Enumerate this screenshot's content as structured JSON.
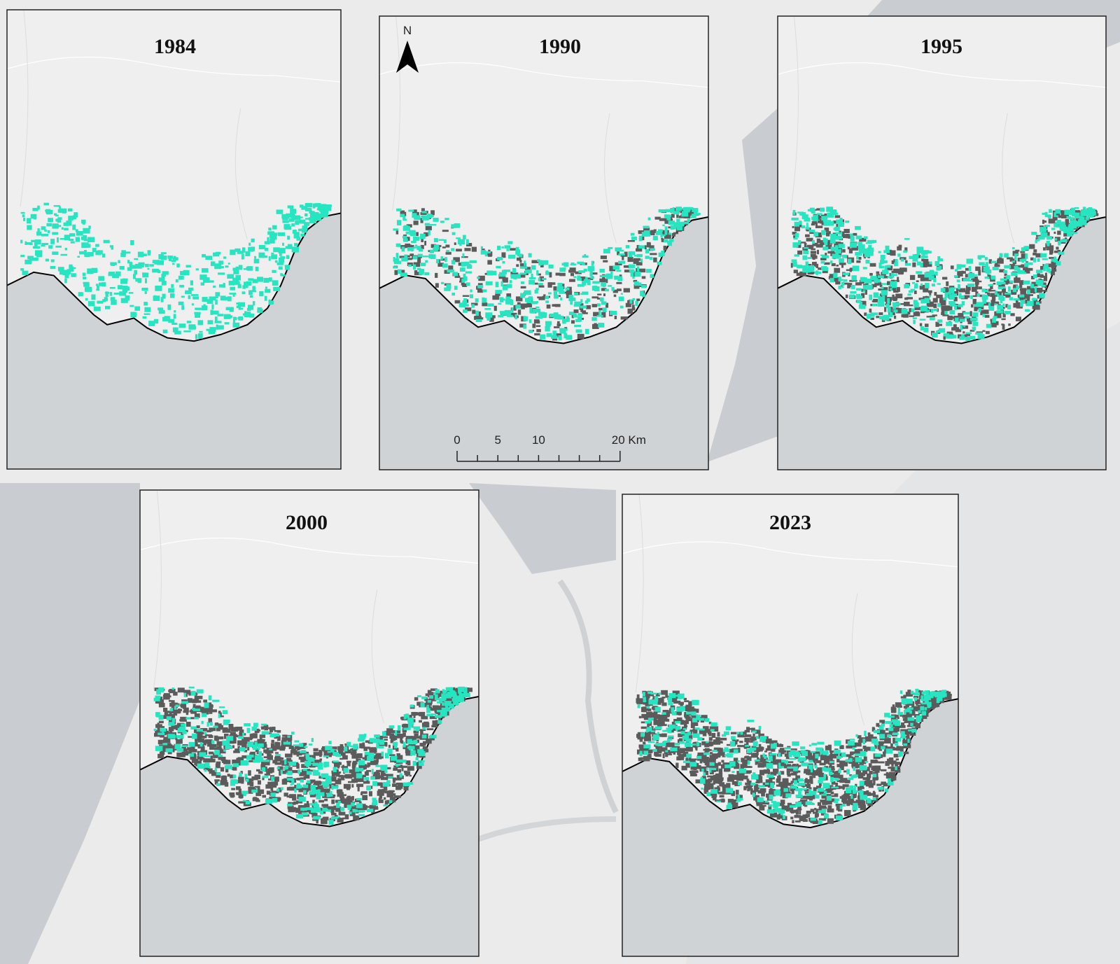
{
  "panels": [
    {
      "title": "1984"
    },
    {
      "title": "1990"
    },
    {
      "title": "1995"
    },
    {
      "title": "2000"
    },
    {
      "title": "2023"
    }
  ],
  "north_arrow": {
    "label": "N"
  },
  "scale_bar": {
    "labels": [
      "0",
      "5",
      "10",
      "20 Km"
    ]
  }
}
